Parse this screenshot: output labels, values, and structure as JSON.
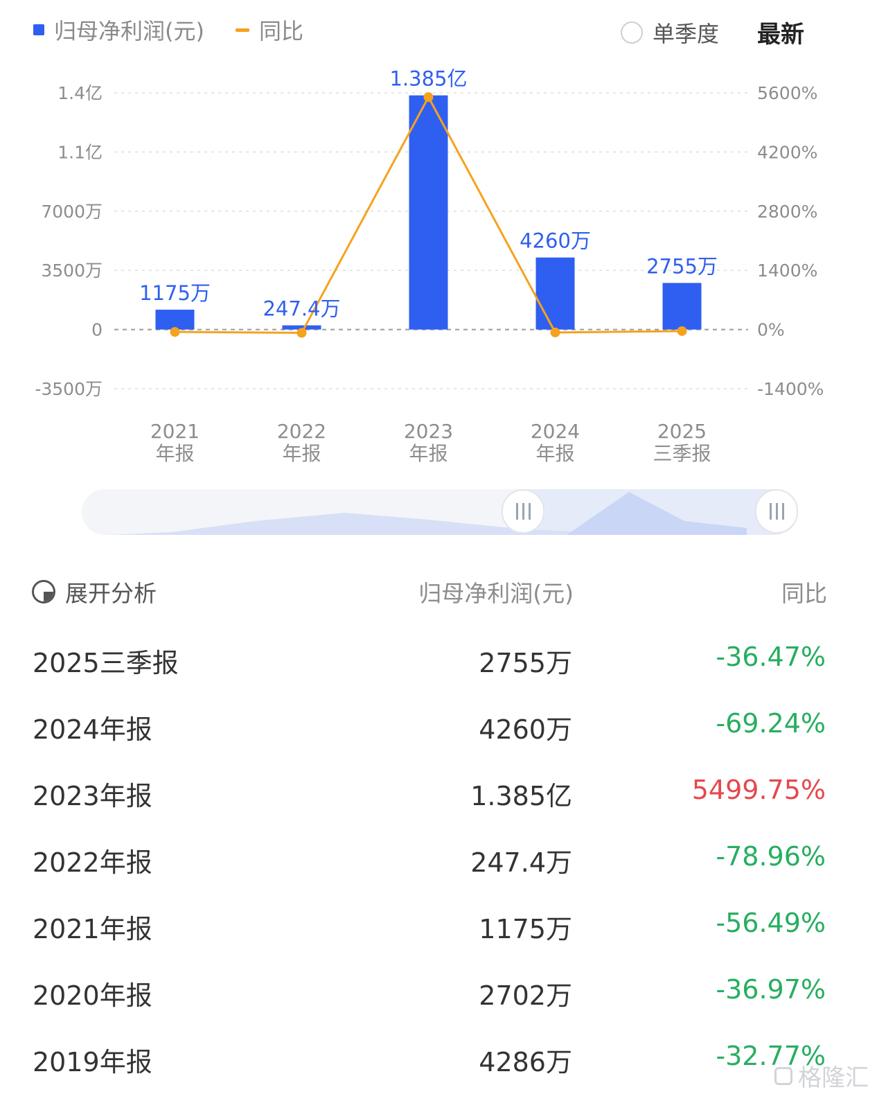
{
  "legend": {
    "bar_label": "归母净利润(元)",
    "line_label": "同比"
  },
  "controls": {
    "single_quarter_label": "单季度",
    "latest_label": "最新"
  },
  "colors": {
    "bar": "#2f5ff0",
    "line": "#f5a21e",
    "negative": "#27ae60",
    "positive": "#e5484d"
  },
  "chart_data": {
    "type": "bar",
    "categories": [
      [
        "2021",
        "年报"
      ],
      [
        "2022",
        "年报"
      ],
      [
        "2023",
        "年报"
      ],
      [
        "2024",
        "年报"
      ],
      [
        "2025",
        "三季报"
      ]
    ],
    "series": [
      {
        "type": "bar",
        "name": "归母净利润(元)",
        "values": [
          11750000,
          2474000,
          138500000,
          42600000,
          27550000
        ],
        "data_labels": [
          "1175万",
          "247.4万",
          "1.385亿",
          "4260万",
          "2755万"
        ]
      },
      {
        "type": "line",
        "name": "同比",
        "axis": "right",
        "values": [
          -56.49,
          -78.96,
          5499.75,
          -69.24,
          -36.47
        ]
      }
    ],
    "y_left": {
      "range": [
        -35000000,
        140000000
      ],
      "ticks": [
        -35000000,
        0,
        35000000,
        70000000,
        110000000,
        140000000
      ],
      "tick_labels": [
        "-3500万",
        "0",
        "3500万",
        "7000万",
        "1.1亿",
        "1.4亿"
      ]
    },
    "y_right": {
      "range": [
        -1400,
        5600
      ],
      "ticks": [
        -1400,
        0,
        1400,
        2800,
        4200,
        5600
      ],
      "tick_labels": [
        "-1400%",
        "0%",
        "1400%",
        "2800%",
        "4200%",
        "5600%"
      ]
    },
    "grid": true,
    "legend_position": "top-left"
  },
  "table": {
    "expand_label": "展开分析",
    "col_profit": "归母净利润(元)",
    "col_yoy": "同比",
    "rows": [
      {
        "period": "2025三季报",
        "profit": "2755万",
        "yoy": "-36.47%",
        "sign": "neg"
      },
      {
        "period": "2024年报",
        "profit": "4260万",
        "yoy": "-69.24%",
        "sign": "neg"
      },
      {
        "period": "2023年报",
        "profit": "1.385亿",
        "yoy": "5499.75%",
        "sign": "pos"
      },
      {
        "period": "2022年报",
        "profit": "247.4万",
        "yoy": "-78.96%",
        "sign": "neg"
      },
      {
        "period": "2021年报",
        "profit": "1175万",
        "yoy": "-56.49%",
        "sign": "neg"
      },
      {
        "period": "2020年报",
        "profit": "2702万",
        "yoy": "-36.97%",
        "sign": "neg"
      },
      {
        "period": "2019年报",
        "profit": "4286万",
        "yoy": "-32.77%",
        "sign": "neg"
      }
    ]
  },
  "watermark": "格隆汇"
}
